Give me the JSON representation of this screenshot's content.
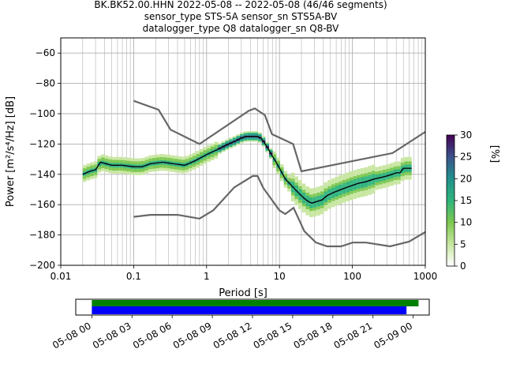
{
  "title_lines": [
    "BK.BK52.00.HHN   2022-05-08 -- 2022-05-08  (46/46 segments)",
    "sensor_type STS-5A sensor_sn STS5A-BV",
    "datalogger_type Q8 datalogger_sn Q8-BV"
  ],
  "chart_data": [
    {
      "type": "heatmap",
      "xlabel": "Period [s]",
      "ylabel": "Power [m²/s⁴/Hz] [dB]",
      "xscale": "log",
      "xlim": [
        0.01,
        1000
      ],
      "ylim": [
        -200,
        -50
      ],
      "grid": true,
      "x_ticks": [
        0.01,
        0.1,
        1,
        10,
        100,
        1000
      ],
      "x_tick_labels": [
        "0.01",
        "0.1",
        "1",
        "10",
        "100",
        "1000"
      ],
      "y_ticks": [
        -200,
        -180,
        -160,
        -140,
        -120,
        -100,
        -80,
        -60
      ],
      "y_tick_labels": [
        "−200",
        "−180",
        "−160",
        "−140",
        "−120",
        "−100",
        "−80",
        "−60"
      ],
      "colorbar": {
        "label": "[%]",
        "range": [
          0,
          30
        ],
        "ticks": [
          0,
          5,
          10,
          15,
          20,
          25,
          30
        ],
        "tick_labels": [
          "0",
          "5",
          "10",
          "15",
          "20",
          "25",
          "30"
        ],
        "colormap": [
          "#ffffff",
          "#c8e6a0",
          "#7dc850",
          "#2fb47c",
          "#21918c",
          "#3b528b",
          "#440154"
        ]
      },
      "series": [
        {
          "role": "NHNM",
          "color": "#666666",
          "x": [
            0.1,
            0.22,
            0.32,
            0.8,
            3.8,
            4.6,
            6.3,
            7.9,
            15.4,
            20,
            354.8,
            1000
          ],
          "y": [
            -91.5,
            -97.4,
            -110.5,
            -120,
            -98,
            -96.5,
            -101,
            -113.5,
            -120,
            -138,
            -126,
            -112
          ]
        },
        {
          "role": "NLNM",
          "color": "#666666",
          "x": [
            0.1,
            0.17,
            0.4,
            0.8,
            1.24,
            2.4,
            4.3,
            5,
            6,
            10,
            12,
            15.6,
            21.9,
            31.6,
            45,
            70,
            101,
            154,
            328,
            600,
            1000
          ],
          "y": [
            -168,
            -166.7,
            -166.7,
            -169.2,
            -163.7,
            -148.6,
            -141.1,
            -141.1,
            -149,
            -163.8,
            -166.2,
            -162.1,
            -177.5,
            -185,
            -187.5,
            -187.5,
            -185,
            -185,
            -187.5,
            -184.4,
            -178
          ]
        },
        {
          "role": "mode",
          "color": "#000000",
          "x": [
            0.02,
            0.025,
            0.03,
            0.035,
            0.05,
            0.07,
            0.1,
            0.13,
            0.17,
            0.25,
            0.35,
            0.5,
            0.7,
            1,
            1.5,
            2,
            2.5,
            3,
            3.5,
            4,
            4.5,
            5,
            5.5,
            6,
            7,
            8,
            9,
            10,
            12,
            15,
            18,
            22,
            25,
            28,
            32,
            38,
            45,
            55,
            70,
            90,
            120,
            150,
            200,
            250,
            300,
            350,
            400,
            450,
            500,
            550,
            600,
            650
          ],
          "y": [
            -140,
            -138,
            -137,
            -132,
            -134,
            -134,
            -135,
            -135,
            -133,
            -132,
            -133,
            -134,
            -131,
            -127,
            -123,
            -120,
            -118,
            -116,
            -115,
            -115,
            -115,
            -115,
            -116,
            -118,
            -123,
            -128,
            -132,
            -136,
            -143,
            -148,
            -152,
            -156,
            -158,
            -159,
            -158,
            -157,
            -154,
            -152,
            -150,
            -148,
            -146,
            -145,
            -143,
            -142,
            -141,
            -140,
            -139,
            -139,
            -136,
            -136,
            -136,
            -136
          ]
        }
      ]
    },
    {
      "type": "bar",
      "role": "data availability",
      "x_tick_labels": [
        "05-08 00",
        "05-08 03",
        "05-08 06",
        "05-08 09",
        "05-08 12",
        "05-08 15",
        "05-08 18",
        "05-08 21",
        "05-09 00"
      ],
      "x_tick_hours": [
        0,
        3,
        6,
        9,
        12,
        15,
        18,
        21,
        24
      ],
      "xlim_hours": [
        -1.2,
        25.2
      ],
      "series": [
        {
          "name": "",
          "color": "#008000",
          "start_hour": 0,
          "end_hour": 24.4
        },
        {
          "name": "",
          "color": "#0000ff",
          "start_hour": 0,
          "end_hour": 23.5
        }
      ]
    }
  ]
}
